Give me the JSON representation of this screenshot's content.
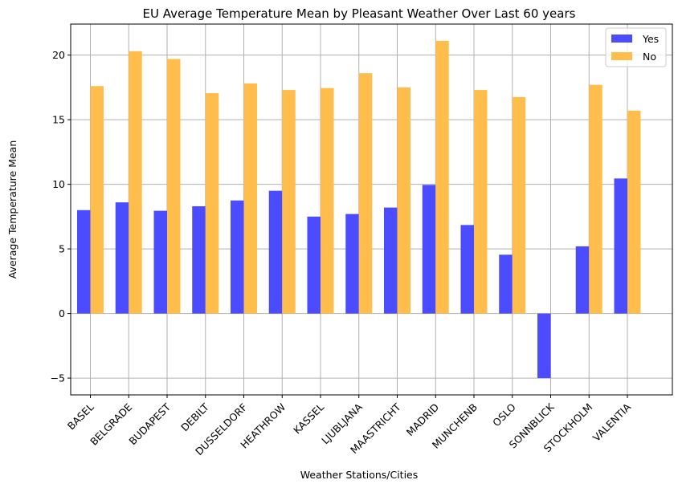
{
  "chart_data": {
    "type": "bar",
    "title": "EU Average Temperature Mean by Pleasant Weather Over Last 60 years",
    "xlabel": "Weather Stations/Cities",
    "ylabel": "Average Temperature Mean",
    "ylim": [
      -6.3,
      22.4
    ],
    "yticks": [
      -5,
      0,
      5,
      10,
      15,
      20
    ],
    "ytick_labels": [
      "−5",
      "0",
      "5",
      "10",
      "15",
      "20"
    ],
    "grid": true,
    "legend_position": "top-right",
    "categories": [
      "BASEL",
      "BELGRADE",
      "BUDAPEST",
      "DEBILT",
      "DUSSELDORF",
      "HEATHROW",
      "KASSEL",
      "LJUBLJANA",
      "MAASTRICHT",
      "MADRID",
      "MUNCHENB",
      "OSLO",
      "SONNBLICK",
      "STOCKHOLM",
      "VALENTIA"
    ],
    "series": [
      {
        "name": "Yes",
        "color": "#4b4bff",
        "values": [
          8.0,
          8.6,
          7.95,
          8.3,
          8.75,
          9.5,
          7.5,
          7.7,
          8.2,
          9.95,
          6.85,
          4.55,
          -5.0,
          5.2,
          10.45
        ]
      },
      {
        "name": "No",
        "color": "#ffbd4b",
        "values": [
          17.6,
          20.3,
          19.7,
          17.05,
          17.8,
          17.3,
          17.45,
          18.6,
          17.5,
          21.1,
          17.3,
          16.75,
          null,
          17.7,
          15.7
        ]
      }
    ]
  }
}
